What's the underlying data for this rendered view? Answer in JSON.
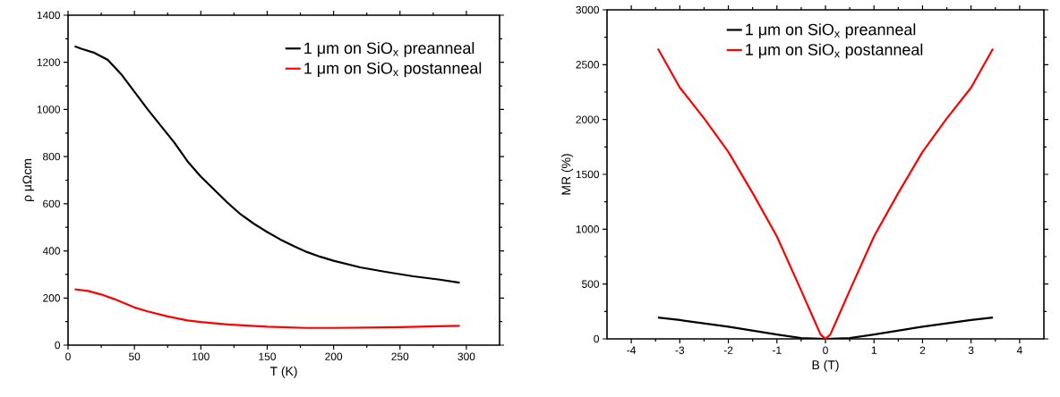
{
  "chart_data": [
    {
      "type": "line",
      "xlabel": "T (K)",
      "ylabel": "ρ μΩcm",
      "xlim": [
        0,
        325
      ],
      "ylim": [
        0,
        1400
      ],
      "xticks": [
        0,
        50,
        100,
        150,
        200,
        250,
        300
      ],
      "yticks": [
        0,
        200,
        400,
        600,
        800,
        1000,
        1200,
        1400
      ],
      "legend": "top right",
      "series": [
        {
          "name": "1 μm on SiO$_{x}$ preanneal",
          "color": "#000000",
          "x": [
            5,
            10,
            20,
            30,
            40,
            50,
            60,
            70,
            80,
            90,
            100,
            110,
            120,
            130,
            140,
            150,
            160,
            170,
            180,
            190,
            200,
            220,
            240,
            260,
            280,
            295
          ],
          "values": [
            1268,
            1258,
            1240,
            1210,
            1150,
            1075,
            1000,
            930,
            860,
            780,
            715,
            660,
            605,
            555,
            515,
            480,
            448,
            420,
            395,
            375,
            358,
            330,
            310,
            292,
            278,
            265
          ]
        },
        {
          "name": "1 μm on SiO$_{x}$ postanneal",
          "color": "#ff0000",
          "x": [
            5,
            15,
            25,
            35,
            50,
            60,
            75,
            90,
            100,
            120,
            150,
            180,
            200,
            250,
            295
          ],
          "values": [
            237,
            230,
            215,
            195,
            160,
            143,
            122,
            105,
            98,
            88,
            78,
            73,
            73,
            76,
            82
          ]
        }
      ]
    },
    {
      "type": "line",
      "xlabel": "B (T)",
      "ylabel": "MR (%)",
      "xlim": [
        -4.5,
        4.5
      ],
      "ylim": [
        0,
        3000
      ],
      "xticks": [
        -4,
        -3,
        -2,
        -1,
        0,
        1,
        2,
        3,
        4
      ],
      "yticks": [
        0,
        500,
        1000,
        1500,
        2000,
        2500,
        3000
      ],
      "legend": "top",
      "series": [
        {
          "name": "1 μm on SiO$_{x}$ preanneal",
          "color": "#000000",
          "x": [
            -3.45,
            -3,
            -2,
            -1,
            -0.5,
            0,
            0.5,
            1,
            2,
            3,
            3.45
          ],
          "values": [
            195,
            172,
            111,
            40,
            8,
            0,
            8,
            40,
            111,
            172,
            195
          ]
        },
        {
          "name": "1 μm on SiO$_{x}$ postanneal",
          "color": "#ff0000",
          "x": [
            -3.45,
            -3,
            -2.5,
            -2,
            -1.5,
            -1,
            -0.5,
            -0.25,
            -0.1,
            0,
            0.1,
            0.25,
            0.5,
            1,
            1.5,
            2,
            2.5,
            3,
            3.45
          ],
          "values": [
            2645,
            2291,
            2010,
            1705,
            1330,
            934,
            441,
            190,
            40,
            0,
            40,
            190,
            441,
            934,
            1330,
            1705,
            2010,
            2291,
            2645
          ]
        }
      ]
    }
  ]
}
